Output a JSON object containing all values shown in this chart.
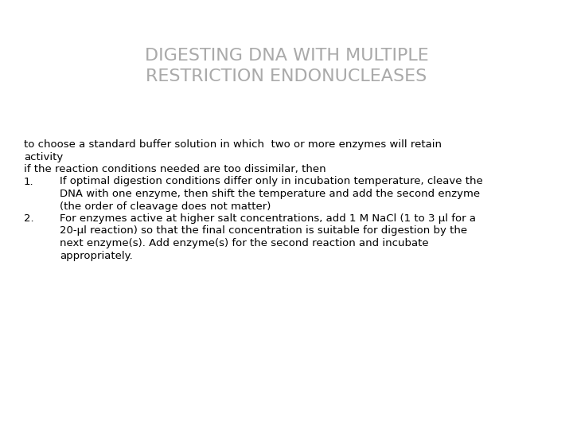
{
  "title_line1": "DIGESTING DNA WITH MULTIPLE",
  "title_line2": "RESTRICTION ENDONUCLEASES",
  "title_color": "#aaaaaa",
  "title_fontsize": 16,
  "body_fontsize": 9.5,
  "body_color": "#000000",
  "background_color": "#ffffff",
  "intro_lines": [
    "to choose a standard buffer solution in which  two or more enzymes will retain",
    "activity",
    "if the reaction conditions needed are too dissimilar, then"
  ],
  "item1_label": "1.",
  "item1_lines": [
    "If optimal digestion conditions differ only in incubation temperature, cleave the",
    "DNA with one enzyme, then shift the temperature and add the second enzyme",
    "(the order of cleavage does not matter)"
  ],
  "item2_label": "2.",
  "item2_lines": [
    "For enzymes active at higher salt concentrations, add 1 M NaCl (1 to 3 μl for a",
    "20-μl reaction) so that the final concentration is suitable for digestion by the",
    "next enzyme(s). Add enzyme(s) for the second reaction and incubate",
    "appropriately."
  ]
}
